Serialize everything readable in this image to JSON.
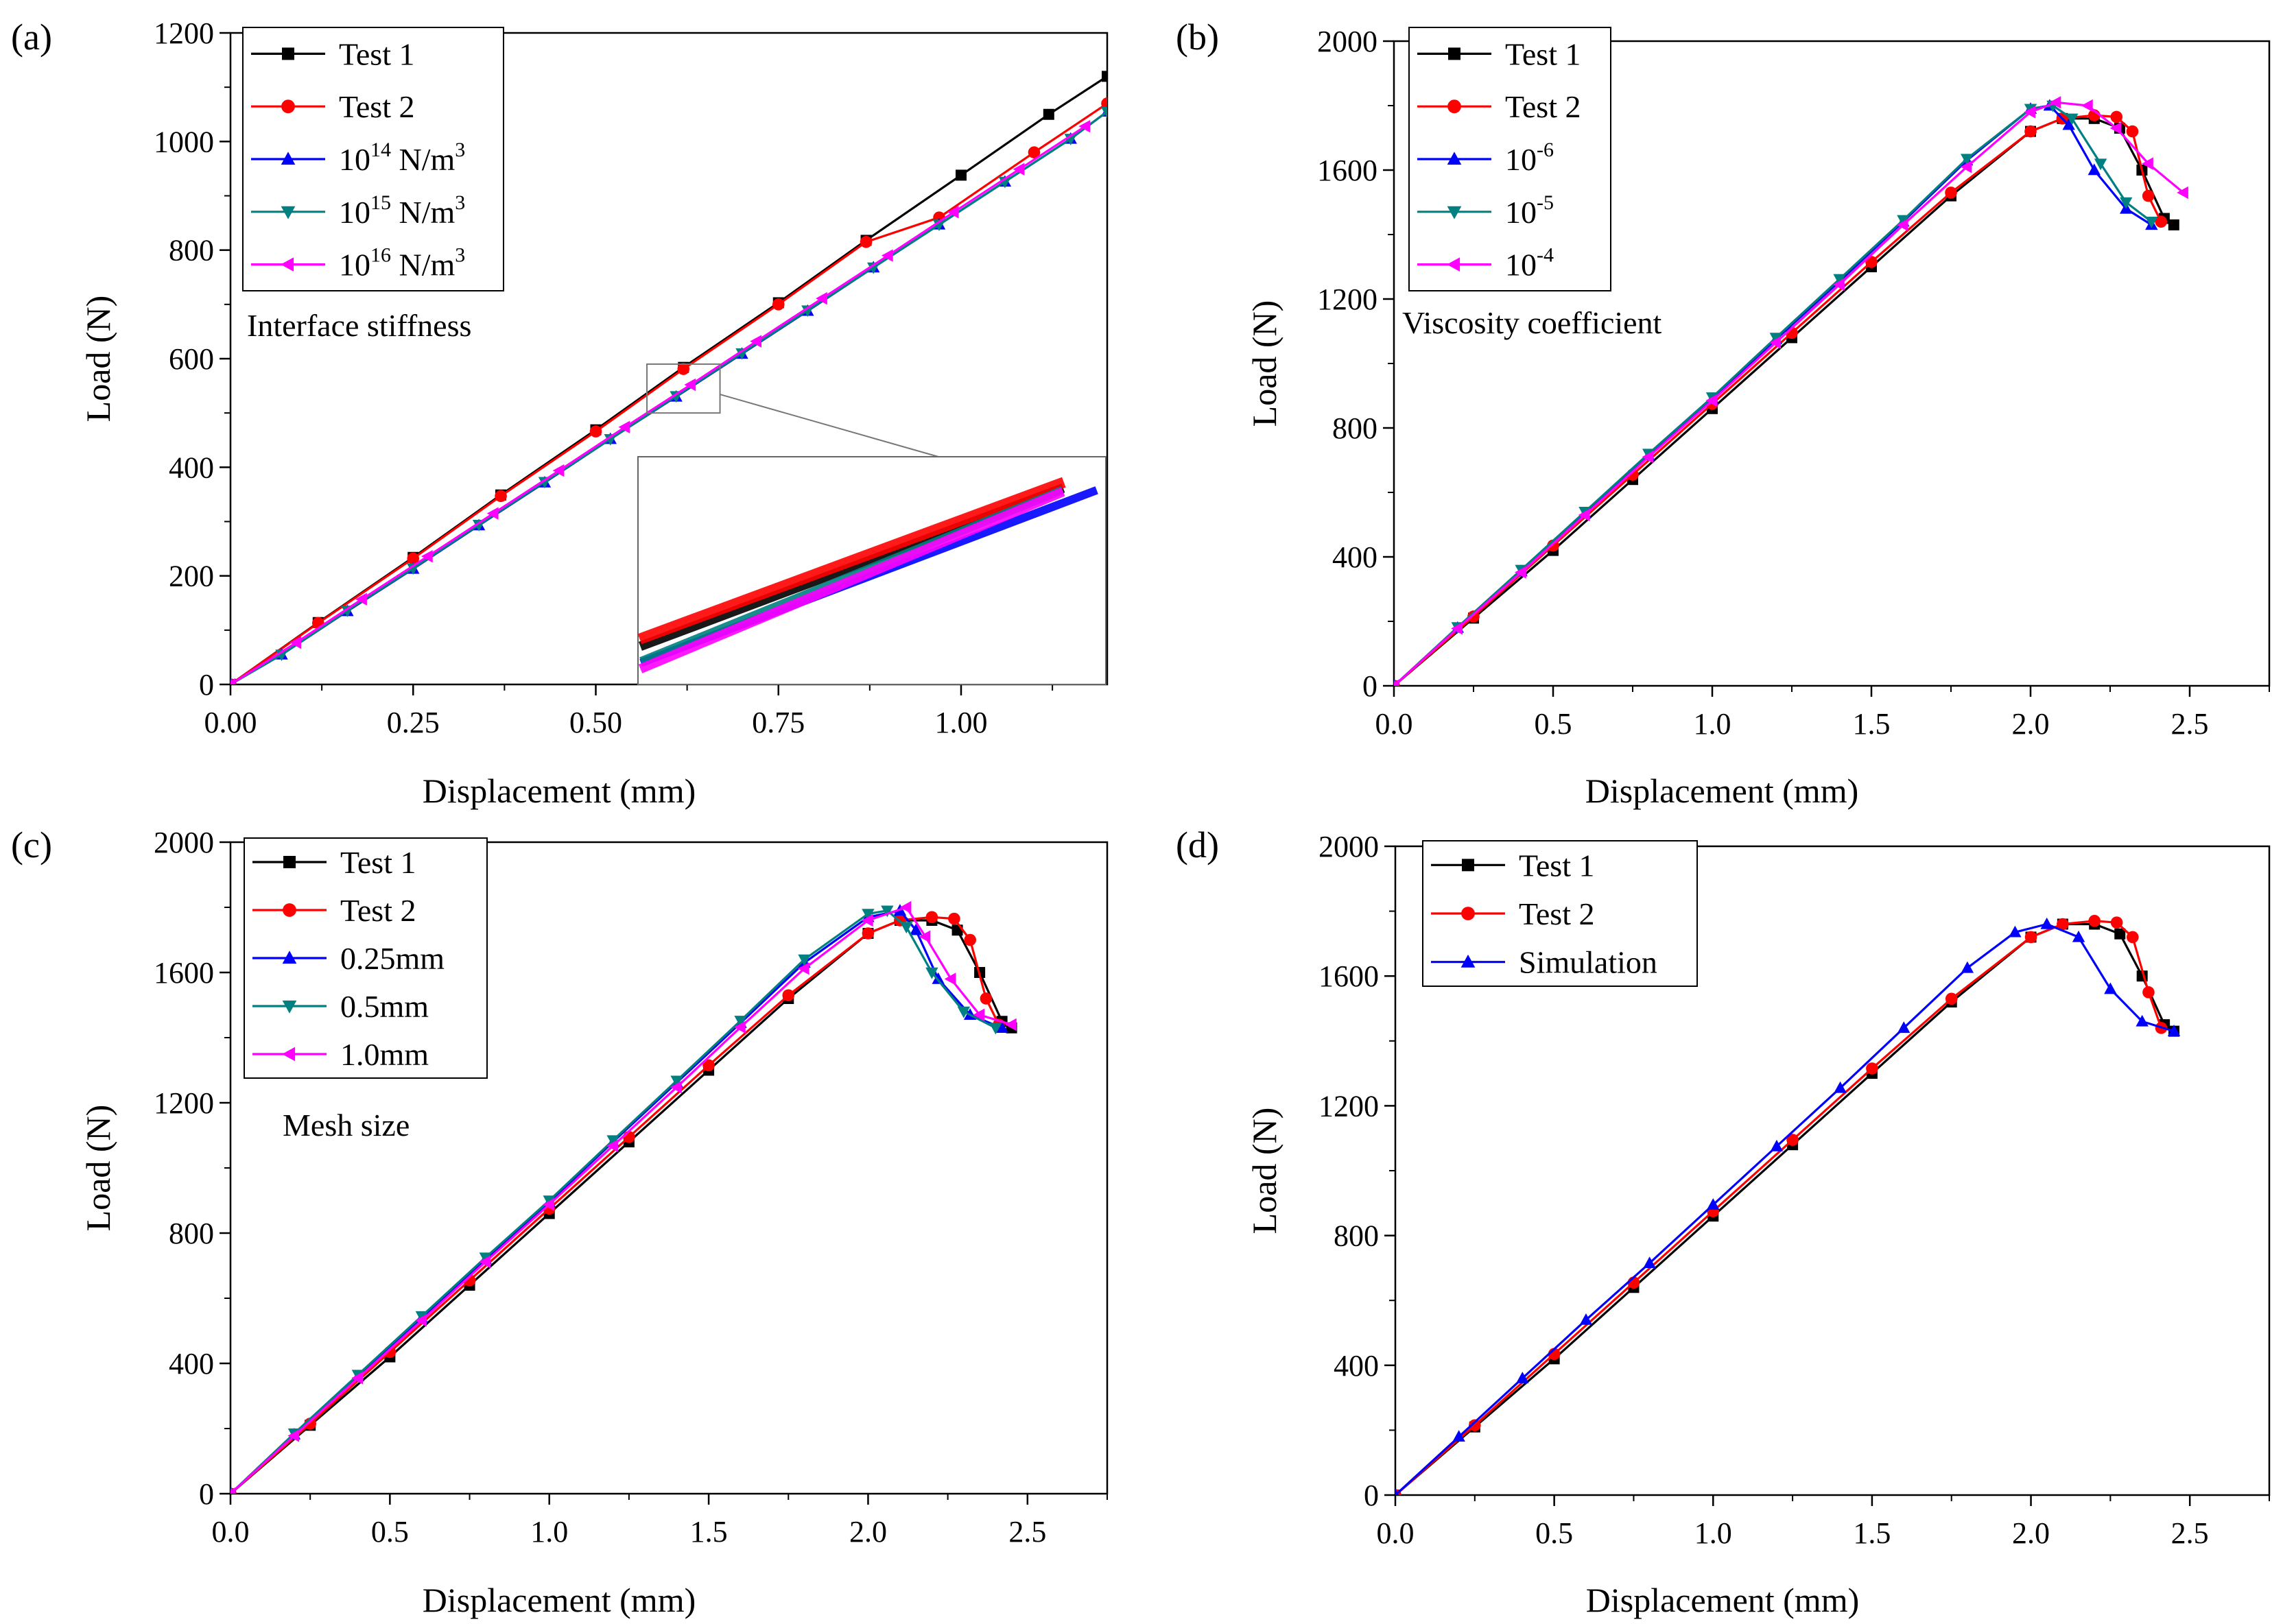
{
  "figure": {
    "colors": {
      "black": "#000000",
      "red": "#ff0000",
      "blue": "#0000ff",
      "teal": "#008080",
      "magenta": "#ff00ff"
    }
  },
  "chart_data": [
    {
      "id": "a",
      "type": "line",
      "panel_label": "(a)",
      "xlabel": "Displacement (mm)",
      "ylabel": "Load (N)",
      "xlim": [
        0,
        1.2
      ],
      "ylim": [
        0,
        1200
      ],
      "xticks": [
        0,
        0.25,
        0.5,
        0.75,
        1.0
      ],
      "xtick_labels": [
        "0.00",
        "0.25",
        "0.50",
        "0.75",
        "1.00"
      ],
      "yticks": [
        0,
        200,
        400,
        600,
        800,
        1000,
        1200
      ],
      "ytick_labels": [
        "0",
        "200",
        "400",
        "600",
        "800",
        "1000",
        "1200"
      ],
      "annotation": "Interface stiffness",
      "legend_position": "top-left",
      "inset": {
        "description": "zoomed view of x 0.57-0.67, y 500-590"
      },
      "series": [
        {
          "name": "Test 1",
          "label_parts": [
            "Test 1"
          ],
          "color": "#000000",
          "marker": "square",
          "x": [
            0,
            0.12,
            0.25,
            0.37,
            0.5,
            0.62,
            0.75,
            0.87,
            1.0,
            1.12,
            1.2
          ],
          "y": [
            0,
            114,
            234,
            349,
            469,
            584,
            703,
            818,
            938,
            1050,
            1120
          ]
        },
        {
          "name": "Test 2",
          "label_parts": [
            "Test 2"
          ],
          "color": "#ff0000",
          "marker": "circle",
          "x": [
            0,
            0.12,
            0.25,
            0.37,
            0.5,
            0.62,
            0.75,
            0.87,
            0.97,
            1.1,
            1.2
          ],
          "y": [
            0,
            113,
            232,
            347,
            466,
            581,
            700,
            815,
            860,
            980,
            1070
          ]
        },
        {
          "name": "10^14 N/m^3",
          "label_parts": [
            "10",
            "14",
            " N/m",
            "3"
          ],
          "color": "#0000ff",
          "marker": "triangle-up",
          "x": [
            0,
            0.07,
            0.16,
            0.25,
            0.34,
            0.43,
            0.52,
            0.61,
            0.7,
            0.79,
            0.88,
            0.97,
            1.06,
            1.15,
            1.2
          ],
          "y": [
            0,
            55,
            135,
            213,
            293,
            372,
            452,
            530,
            609,
            688,
            768,
            847,
            926,
            1005,
            1055
          ]
        },
        {
          "name": "10^15 N/m^3",
          "label_parts": [
            "10",
            "15",
            " N/m",
            "3"
          ],
          "color": "#008080",
          "marker": "triangle-down",
          "x": [
            0,
            0.07,
            0.16,
            0.25,
            0.34,
            0.43,
            0.52,
            0.61,
            0.7,
            0.79,
            0.88,
            0.97,
            1.06,
            1.15,
            1.2
          ],
          "y": [
            0,
            55,
            136,
            214,
            294,
            373,
            452,
            531,
            610,
            689,
            768,
            847,
            926,
            1005,
            1055
          ]
        },
        {
          "name": "10^16 N/m^3",
          "label_parts": [
            "10",
            "16",
            " N/m",
            "3"
          ],
          "color": "#ff00ff",
          "marker": "triangle-left",
          "x": [
            0,
            0.09,
            0.18,
            0.27,
            0.36,
            0.45,
            0.54,
            0.63,
            0.72,
            0.81,
            0.9,
            0.99,
            1.08,
            1.17
          ],
          "y": [
            0,
            77,
            157,
            236,
            315,
            394,
            474,
            552,
            632,
            711,
            790,
            870,
            949,
            1028
          ]
        }
      ]
    },
    {
      "id": "b",
      "type": "line",
      "panel_label": "(b)",
      "xlabel": "Displacement (mm)",
      "ylabel": "Load (N)",
      "xlim": [
        0,
        2.75
      ],
      "ylim": [
        0,
        2000
      ],
      "xticks": [
        0,
        0.5,
        1.0,
        1.5,
        2.0,
        2.5
      ],
      "xtick_labels": [
        "0.0",
        "0.5",
        "1.0",
        "1.5",
        "2.0",
        "2.5"
      ],
      "yticks": [
        0,
        400,
        800,
        1200,
        1600,
        2000
      ],
      "ytick_labels": [
        "0",
        "400",
        "800",
        "1200",
        "1600",
        "2000"
      ],
      "annotation": "Viscosity coefficient",
      "legend_position": "top-left",
      "series": [
        {
          "name": "Test 1",
          "label_parts": [
            "Test 1"
          ],
          "color": "#000000",
          "marker": "square",
          "x": [
            0,
            0.25,
            0.5,
            0.75,
            1.0,
            1.25,
            1.5,
            1.75,
            2.0,
            2.1,
            2.2,
            2.28,
            2.35,
            2.42,
            2.45
          ],
          "y": [
            0,
            210,
            420,
            640,
            860,
            1080,
            1300,
            1520,
            1720,
            1760,
            1760,
            1730,
            1600,
            1450,
            1430
          ]
        },
        {
          "name": "Test 2",
          "label_parts": [
            "Test 2"
          ],
          "color": "#ff0000",
          "marker": "circle",
          "x": [
            0,
            0.25,
            0.5,
            0.75,
            1.0,
            1.25,
            1.5,
            1.75,
            2.0,
            2.1,
            2.2,
            2.27,
            2.32,
            2.37,
            2.41
          ],
          "y": [
            0,
            215,
            435,
            655,
            875,
            1095,
            1315,
            1530,
            1720,
            1760,
            1770,
            1765,
            1720,
            1520,
            1440
          ]
        },
        {
          "name": "10^-6",
          "label_parts": [
            "10",
            "-6"
          ],
          "color": "#0000ff",
          "marker": "triangle-up",
          "x": [
            0,
            0.2,
            0.4,
            0.6,
            0.8,
            1.0,
            1.2,
            1.4,
            1.6,
            1.8,
            2.0,
            2.06,
            2.12,
            2.2,
            2.3,
            2.38
          ],
          "y": [
            0,
            180,
            355,
            535,
            715,
            890,
            1075,
            1255,
            1440,
            1630,
            1790,
            1800,
            1740,
            1600,
            1480,
            1430
          ]
        },
        {
          "name": "10^-5",
          "label_parts": [
            "10",
            "-5"
          ],
          "color": "#008080",
          "marker": "triangle-down",
          "x": [
            0,
            0.2,
            0.4,
            0.6,
            0.8,
            1.0,
            1.2,
            1.4,
            1.6,
            1.8,
            2.0,
            2.07,
            2.13,
            2.22,
            2.3,
            2.38
          ],
          "y": [
            0,
            182,
            360,
            540,
            720,
            895,
            1080,
            1262,
            1445,
            1635,
            1790,
            1800,
            1760,
            1620,
            1500,
            1440
          ]
        },
        {
          "name": "10^-4",
          "label_parts": [
            "10",
            "-4"
          ],
          "color": "#ff00ff",
          "marker": "triangle-left",
          "x": [
            0,
            0.2,
            0.4,
            0.6,
            0.8,
            1.0,
            1.2,
            1.4,
            1.6,
            1.8,
            2.0,
            2.08,
            2.18,
            2.27,
            2.37,
            2.48
          ],
          "y": [
            0,
            178,
            352,
            530,
            710,
            885,
            1065,
            1245,
            1430,
            1610,
            1780,
            1810,
            1800,
            1730,
            1620,
            1530
          ]
        }
      ]
    },
    {
      "id": "c",
      "type": "line",
      "panel_label": "(c)",
      "xlabel": "Displacement (mm)",
      "ylabel": "Load (N)",
      "xlim": [
        0,
        2.75
      ],
      "ylim": [
        0,
        2000
      ],
      "xticks": [
        0,
        0.5,
        1.0,
        1.5,
        2.0,
        2.5
      ],
      "xtick_labels": [
        "0.0",
        "0.5",
        "1.0",
        "1.5",
        "2.0",
        "2.5"
      ],
      "yticks": [
        0,
        400,
        800,
        1200,
        1600,
        2000
      ],
      "ytick_labels": [
        "0",
        "400",
        "800",
        "1200",
        "1600",
        "2000"
      ],
      "annotation": "Mesh size",
      "legend_position": "top-left",
      "series": [
        {
          "name": "Test 1",
          "label_parts": [
            "Test 1"
          ],
          "color": "#000000",
          "marker": "square",
          "x": [
            0,
            0.25,
            0.5,
            0.75,
            1.0,
            1.25,
            1.5,
            1.75,
            2.0,
            2.1,
            2.2,
            2.28,
            2.35,
            2.42,
            2.45
          ],
          "y": [
            0,
            210,
            420,
            640,
            860,
            1080,
            1300,
            1520,
            1720,
            1760,
            1760,
            1730,
            1600,
            1450,
            1430
          ]
        },
        {
          "name": "Test 2",
          "label_parts": [
            "Test 2"
          ],
          "color": "#ff0000",
          "marker": "circle",
          "x": [
            0,
            0.25,
            0.5,
            0.75,
            1.0,
            1.25,
            1.5,
            1.75,
            2.0,
            2.1,
            2.2,
            2.27,
            2.32,
            2.37,
            2.41
          ],
          "y": [
            0,
            215,
            435,
            655,
            875,
            1095,
            1315,
            1530,
            1720,
            1760,
            1770,
            1765,
            1700,
            1520,
            1440
          ]
        },
        {
          "name": "0.25mm",
          "label_parts": [
            "0.25mm"
          ],
          "color": "#0000ff",
          "marker": "triangle-up",
          "x": [
            0,
            0.2,
            0.4,
            0.6,
            0.8,
            1.0,
            1.2,
            1.4,
            1.6,
            1.8,
            2.0,
            2.1,
            2.15,
            2.22,
            2.32,
            2.42
          ],
          "y": [
            0,
            182,
            360,
            540,
            720,
            895,
            1080,
            1262,
            1445,
            1630,
            1770,
            1790,
            1730,
            1580,
            1470,
            1430
          ]
        },
        {
          "name": "0.5mm",
          "label_parts": [
            "0.5mm"
          ],
          "color": "#008080",
          "marker": "triangle-down",
          "x": [
            0,
            0.2,
            0.4,
            0.6,
            0.8,
            1.0,
            1.2,
            1.4,
            1.6,
            1.8,
            2.0,
            2.06,
            2.12,
            2.2,
            2.3,
            2.4
          ],
          "y": [
            0,
            185,
            365,
            545,
            725,
            900,
            1085,
            1268,
            1452,
            1640,
            1780,
            1790,
            1740,
            1600,
            1480,
            1430
          ]
        },
        {
          "name": "1.0mm",
          "label_parts": [
            "1.0mm"
          ],
          "color": "#ff00ff",
          "marker": "triangle-left",
          "x": [
            0,
            0.2,
            0.4,
            0.6,
            0.8,
            1.0,
            1.2,
            1.4,
            1.6,
            1.8,
            2.0,
            2.12,
            2.18,
            2.26,
            2.35,
            2.45
          ],
          "y": [
            0,
            178,
            355,
            532,
            712,
            888,
            1068,
            1248,
            1432,
            1612,
            1760,
            1800,
            1710,
            1580,
            1470,
            1440
          ]
        }
      ]
    },
    {
      "id": "d",
      "type": "line",
      "panel_label": "(d)",
      "xlabel": "Displacement (mm)",
      "ylabel": "Load (N)",
      "xlim": [
        0,
        2.75
      ],
      "ylim": [
        0,
        2000
      ],
      "xticks": [
        0,
        0.5,
        1.0,
        1.5,
        2.0,
        2.5
      ],
      "xtick_labels": [
        "0.0",
        "0.5",
        "1.0",
        "1.5",
        "2.0",
        "2.5"
      ],
      "yticks": [
        0,
        400,
        800,
        1200,
        1600,
        2000
      ],
      "ytick_labels": [
        "0",
        "400",
        "800",
        "1200",
        "1600",
        "2000"
      ],
      "annotation": "",
      "legend_position": "top-left",
      "series": [
        {
          "name": "Test 1",
          "label_parts": [
            "Test 1"
          ],
          "color": "#000000",
          "marker": "square",
          "x": [
            0,
            0.25,
            0.5,
            0.75,
            1.0,
            1.25,
            1.5,
            1.75,
            2.0,
            2.1,
            2.2,
            2.28,
            2.35,
            2.42,
            2.45
          ],
          "y": [
            0,
            210,
            420,
            640,
            860,
            1080,
            1300,
            1520,
            1720,
            1760,
            1760,
            1730,
            1600,
            1450,
            1430
          ]
        },
        {
          "name": "Test 2",
          "label_parts": [
            "Test 2"
          ],
          "color": "#ff0000",
          "marker": "circle",
          "x": [
            0,
            0.25,
            0.5,
            0.75,
            1.0,
            1.25,
            1.5,
            1.75,
            2.0,
            2.1,
            2.2,
            2.27,
            2.32,
            2.37,
            2.41
          ],
          "y": [
            0,
            215,
            435,
            655,
            875,
            1095,
            1315,
            1530,
            1720,
            1760,
            1770,
            1765,
            1720,
            1550,
            1440
          ]
        },
        {
          "name": "Simulation",
          "label_parts": [
            "Simulation"
          ],
          "color": "#0000ff",
          "marker": "triangle-up",
          "x": [
            0,
            0.2,
            0.4,
            0.6,
            0.8,
            1.0,
            1.2,
            1.4,
            1.6,
            1.8,
            1.95,
            2.05,
            2.15,
            2.25,
            2.35,
            2.45
          ],
          "y": [
            0,
            180,
            360,
            540,
            715,
            895,
            1075,
            1255,
            1440,
            1625,
            1735,
            1760,
            1720,
            1560,
            1460,
            1430
          ]
        }
      ]
    }
  ]
}
